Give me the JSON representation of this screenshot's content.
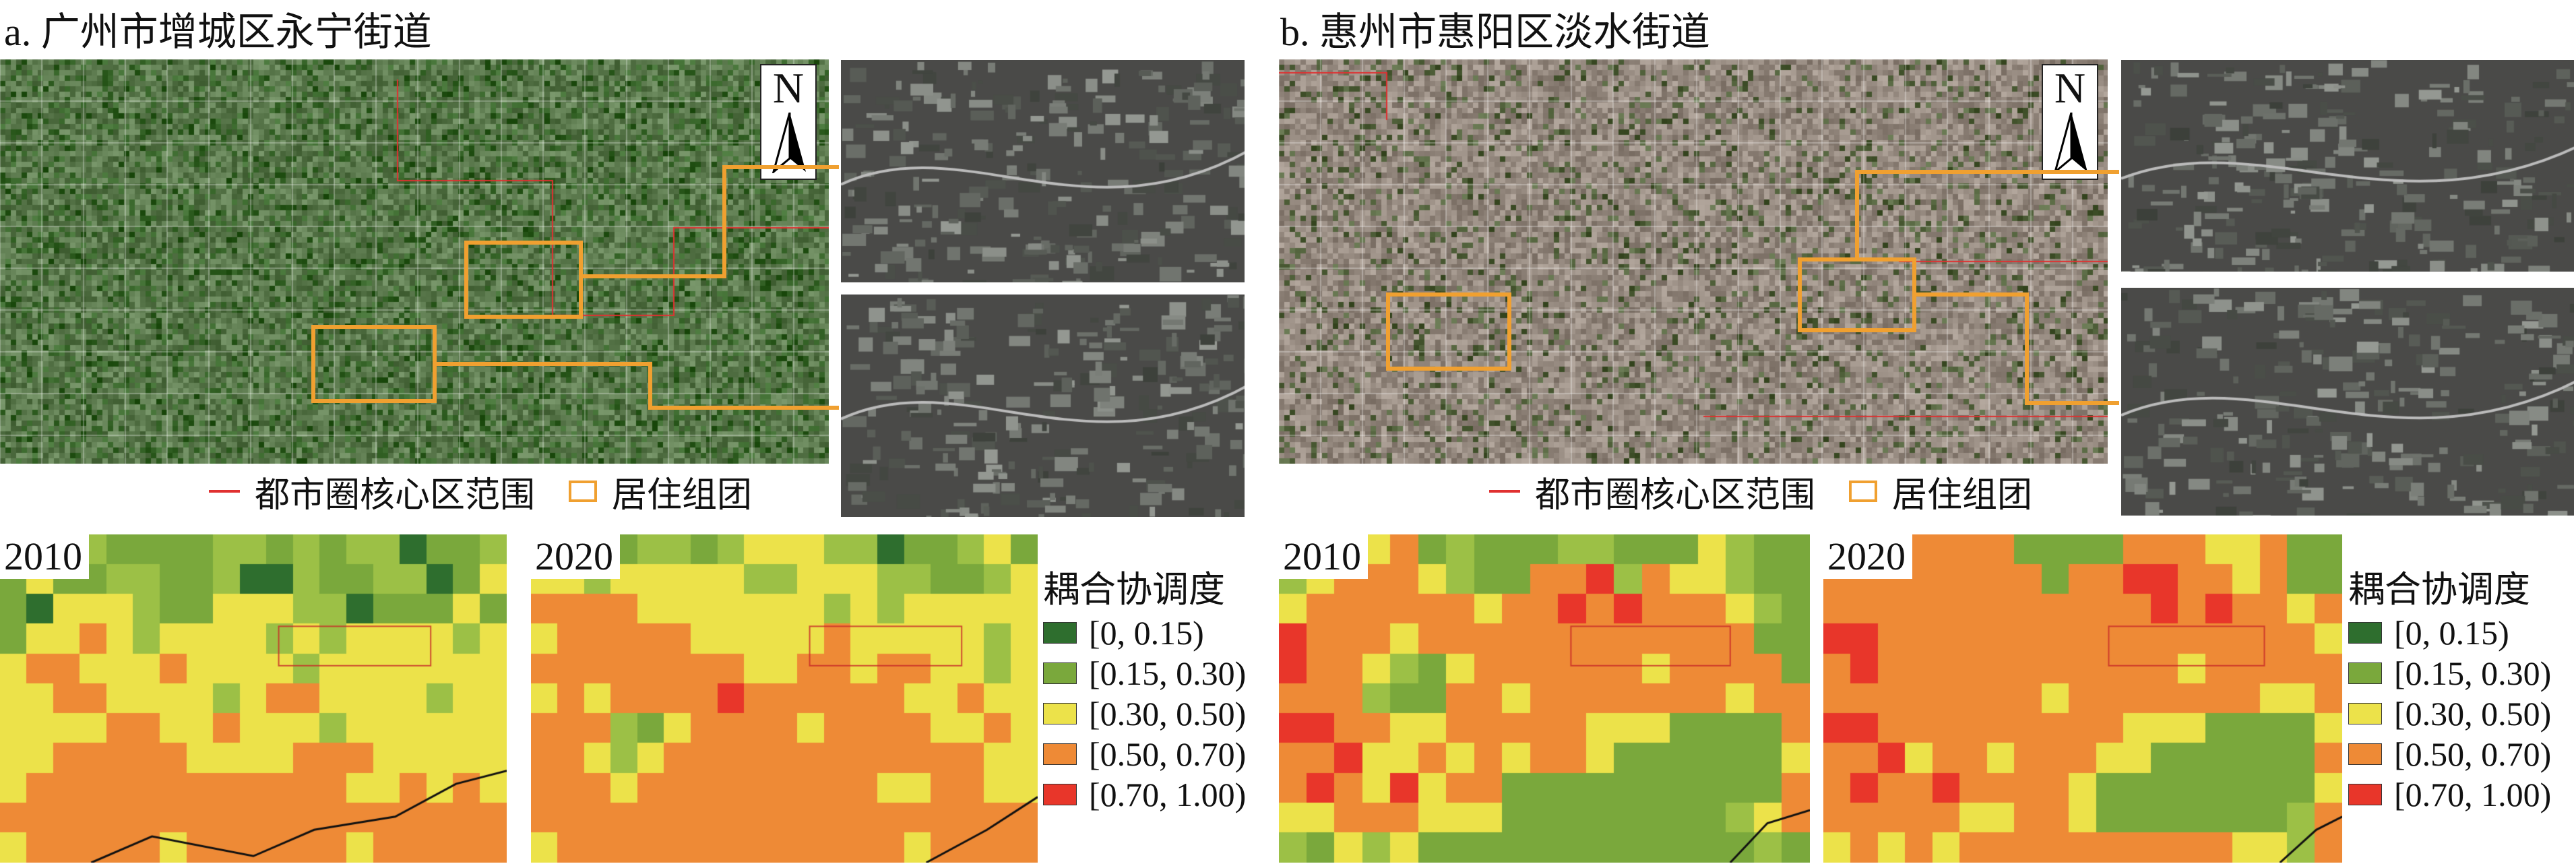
{
  "panels": [
    {
      "id": "a",
      "title": "a. 广州市增城区永宁街道",
      "north_label": "N",
      "legend": {
        "boundary": "都市圈核心区范围",
        "cluster": "居住组团"
      },
      "years": [
        "2010",
        "2020"
      ],
      "satellite_tone": "green",
      "grid_2010": [
        "GGGLGGGGLLGLGLLDGGL",
        "GYGGLLGGLDDLGGLLDGY",
        "GDYYYLGGYYYLLDGGGYG",
        "GYYOYLYYYYLYLYYYYLY",
        "YOOYYYOYYYYLYYYYYYY",
        "YYOOYYYYLYOOYYYYLYY",
        "YYYYOOYYOYYYLYYYYYY",
        "YYOOOOOYYYYOOOYYYYY",
        "YOOOOOOOOOOOOYYOYOY",
        "OOOOOOOOOOOOOOOOOOO",
        "YOOOOOYOOOOOOYOOOOO"
      ],
      "grid_2020": [
        "YYYGLLGLYYYLLDGGLYG",
        "YYLYYYYYLLYYYLLGGLY",
        "OOOOYYYYYYYLYLYYYYY",
        "YOOOOOYYYYYOYYYYYLY",
        "OOOOOOOOYYOOYOOYYLY",
        "YOYOOOOROOOOOOYYOYY",
        "OOOLGYOOOOYOOOOYYOY",
        "OOYLYOOOOOOOOOOOOYY",
        "OOOYOOOOOOOOOYYOOYY",
        "OOOOOOOOOOOOOOOOOOO",
        "YOOOOOOOOOOOOOYOOOO"
      ]
    },
    {
      "id": "b",
      "title": "b. 惠州市惠阳区淡水街道",
      "north_label": "N",
      "legend": {
        "boundary": "都市圈核心区范围",
        "cluster": "居住组团"
      },
      "years": [
        "2010",
        "2020"
      ],
      "satellite_tone": "urban",
      "grid_2010": [
        "GGLYOGLGGGLLGGGYLGG",
        "LYOOOYLGGOORLOYYLGG",
        "YOOOOOOYOOROROOOYLG",
        "ROOOYOOOOOOOOOOOOGG",
        "ROOYLGYOOOOOOYOOOOG",
        "OOOLGGOOYOOOOOOOYOO",
        "RROOYYOOOOOYYYGGGGO",
        "OORYYOYOYOOYGGGGGGY",
        "OROYRYOOGGGGGGGGGGO",
        "YYOOOYYYGGGGGGGGLYO",
        "LGYLYGGGGGGGGGGGGLG"
      ],
      "grid_2020": [
        "OOOOOOOGGGGOOOYYOGG",
        "OOOOOOOOGOORROOYOGG",
        "OOOOOOOOOOOOROROOYO",
        "RROOOOOOOOOOOOOOOOY",
        "OROOOOOOOOOOOYOOOOO",
        "OOOOOOOOYOOOOOOOYYO",
        "RROOOOOOOOOYYYGGGGY",
        "OORYOOYOOOYYGGGGGGO",
        "OROOROOOOYGGGGGGGGY",
        "OOOOOYYOOYGGGGGGGLO",
        "YOYOYOOOOOOOOOOYYLO"
      ]
    }
  ],
  "coupling_legend": {
    "title": "耦合协调度",
    "classes": [
      {
        "code": "D",
        "label": "[0, 0.15)",
        "color": "#2e6e2e"
      },
      {
        "code": "G",
        "label": "[0.15, 0.30)",
        "color": "#7aa83c"
      },
      {
        "code": "L",
        "label": "[0.15, 0.30)",
        "color": "#9cc046"
      },
      {
        "code": "Y",
        "label": "[0.30, 0.50)",
        "color": "#ece24a"
      },
      {
        "code": "O",
        "label": "[0.50, 0.70)",
        "color": "#ee8a36"
      },
      {
        "code": "R",
        "label": "[0.70, 1.00)",
        "color": "#e8362a"
      }
    ],
    "items": [
      {
        "label": "[0, 0.15)",
        "color": "#2e6e2e"
      },
      {
        "label": "[0.15, 0.30)",
        "color": "#7aa83c"
      },
      {
        "label": "[0.30, 0.50)",
        "color": "#ece24a"
      },
      {
        "label": "[0.50, 0.70)",
        "color": "#ee8a36"
      },
      {
        "label": "[0.70, 1.00)",
        "color": "#e8362a"
      }
    ]
  },
  "colors": {
    "boundary": "#e03030",
    "cluster": "#f0a030"
  }
}
